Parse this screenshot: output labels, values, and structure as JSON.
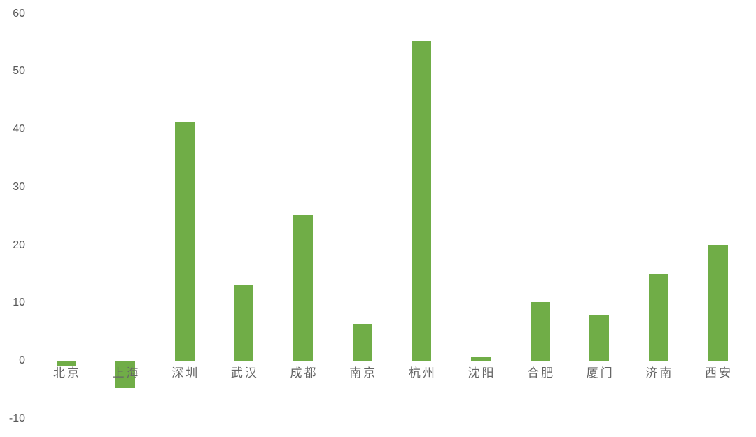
{
  "chart_data": {
    "type": "bar",
    "title": "",
    "xlabel": "",
    "ylabel": "",
    "categories": [
      "北京",
      "上海",
      "深圳",
      "武汉",
      "成都",
      "南京",
      "杭州",
      "沈阳",
      "合肥",
      "厦门",
      "济南",
      "西安"
    ],
    "values": [
      -0.7,
      -4.6,
      41.3,
      13.2,
      25.1,
      6.4,
      55.3,
      0.6,
      10.2,
      8.0,
      15.0,
      20.0
    ],
    "yticks": [
      60,
      50,
      40,
      30,
      20,
      10,
      0,
      -10
    ],
    "ylim": [
      -10,
      60
    ],
    "grid": false,
    "legend": false,
    "bar_color": "#70AD47",
    "axis_line_color": "#D9D9D9",
    "tick_label_color": "#595959",
    "category_label_color": "#666666"
  }
}
